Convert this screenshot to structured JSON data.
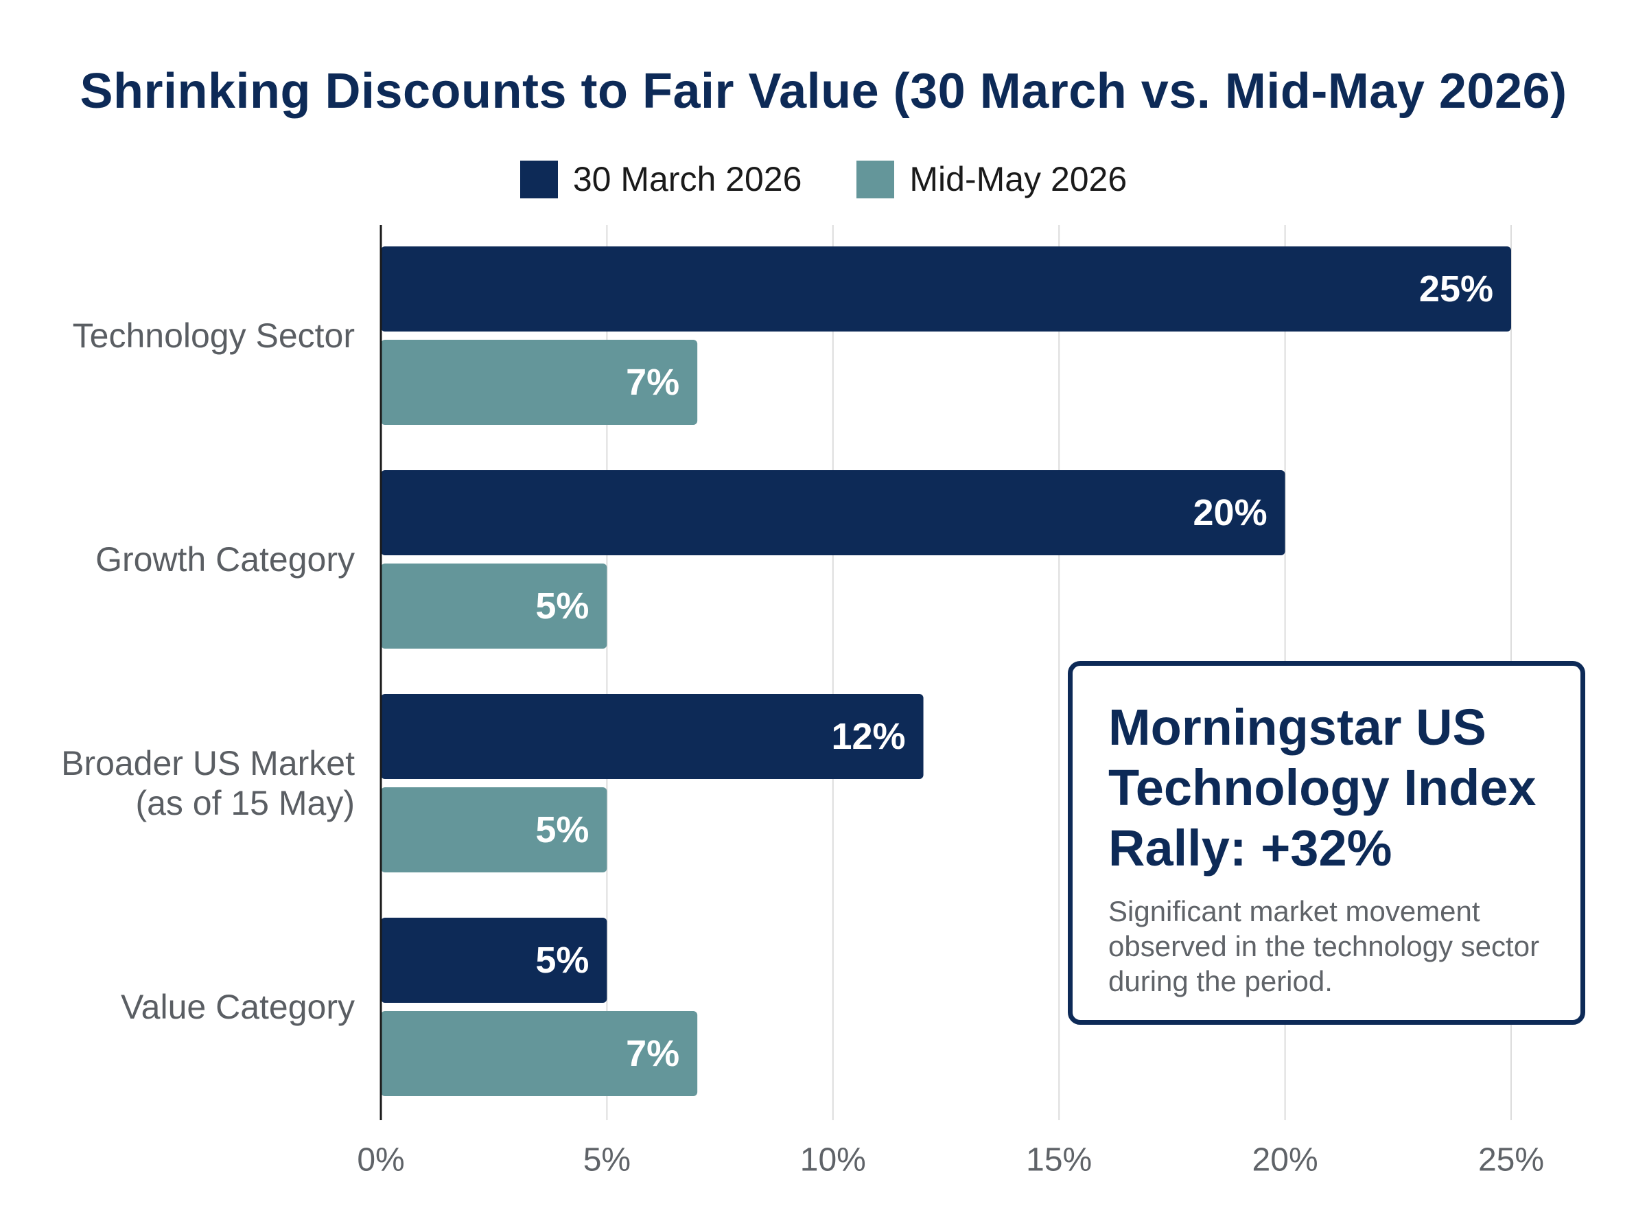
{
  "chart_data": {
    "type": "bar",
    "orientation": "horizontal",
    "title": "Shrinking Discounts to Fair Value (30 March vs. Mid-May 2026)",
    "categories": [
      [
        "Technology Sector"
      ],
      [
        "Growth Category"
      ],
      [
        "Broader US Market",
        "(as of 15 May)"
      ],
      [
        "Value Category"
      ]
    ],
    "series": [
      {
        "name": "30 March 2026",
        "color": "#0d2a57",
        "values": [
          25,
          20,
          12,
          5
        ]
      },
      {
        "name": "Mid-May 2026",
        "color": "#64969a",
        "values": [
          7,
          5,
          5,
          7
        ]
      }
    ],
    "value_labels": [
      [
        "25%",
        "20%",
        "12%",
        "5%"
      ],
      [
        "7%",
        "5%",
        "5%",
        "7%"
      ]
    ],
    "xlim": [
      0,
      25
    ],
    "xticks": [
      0,
      5,
      10,
      15,
      20,
      25
    ],
    "xtick_labels": [
      "0%",
      "5%",
      "10%",
      "15%",
      "20%",
      "25%"
    ],
    "xlabel": "",
    "ylabel": "",
    "grid": "vertical",
    "legend_position": "top-center"
  },
  "callout": {
    "title": "Morningstar US Technology Index Rally: +32%",
    "text": "Significant market movement observed in the technology sector during the period."
  }
}
